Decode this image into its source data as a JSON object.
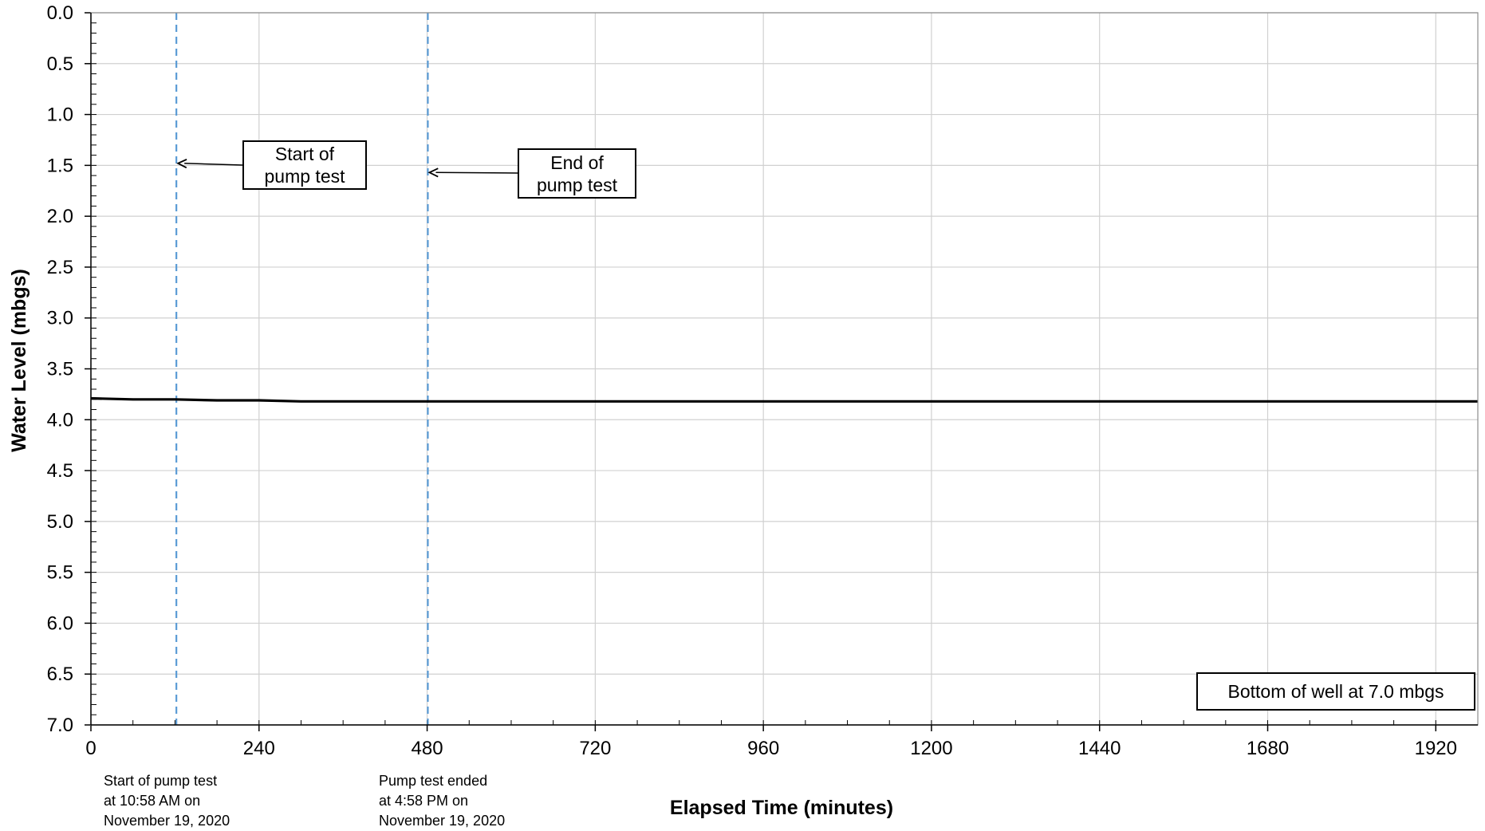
{
  "chart_data": {
    "type": "line",
    "title": "",
    "xlabel": "Elapsed Time (minutes)",
    "ylabel": "Water Level (mbgs)",
    "xlim": [
      0,
      1980
    ],
    "ylim": [
      0.0,
      7.0
    ],
    "y_inverted": true,
    "grid": true,
    "x_ticks": [
      0,
      240,
      480,
      720,
      960,
      1200,
      1440,
      1680,
      1920
    ],
    "y_ticks": [
      "0.0",
      "0.5",
      "1.0",
      "1.5",
      "2.0",
      "2.5",
      "3.0",
      "3.5",
      "4.0",
      "4.5",
      "5.0",
      "5.5",
      "6.0",
      "6.5",
      "7.0"
    ],
    "series": [
      {
        "color": "#000000",
        "x": [
          0,
          60,
          120,
          180,
          240,
          300,
          360,
          480,
          600,
          720,
          960,
          1200,
          1440,
          1680,
          1920,
          1980
        ],
        "y": [
          3.79,
          3.8,
          3.8,
          3.81,
          3.81,
          3.82,
          3.82,
          3.82,
          3.82,
          3.82,
          3.82,
          3.82,
          3.82,
          3.82,
          3.82,
          3.82
        ]
      }
    ],
    "markers": [
      {
        "x": 122,
        "color": "#5B9BD5",
        "style": "dashed"
      },
      {
        "x": 481,
        "color": "#5B9BD5",
        "style": "dashed"
      }
    ],
    "annotations": [
      {
        "lines": [
          "Start of",
          "pump test"
        ],
        "arrow_to": {
          "x": 122,
          "y": 1.48
        }
      },
      {
        "lines": [
          "End of",
          "pump test"
        ],
        "arrow_to": {
          "x": 481,
          "y": 1.57
        }
      },
      {
        "lines": [
          "Bottom of well at 7.0 mbgs"
        ]
      }
    ],
    "notes": [
      {
        "lines": [
          "Start of pump test",
          "at 10:58 AM on",
          "November 19, 2020"
        ]
      },
      {
        "lines": [
          "Pump test ended",
          "at 4:58 PM on",
          "November 19, 2020"
        ]
      }
    ]
  }
}
